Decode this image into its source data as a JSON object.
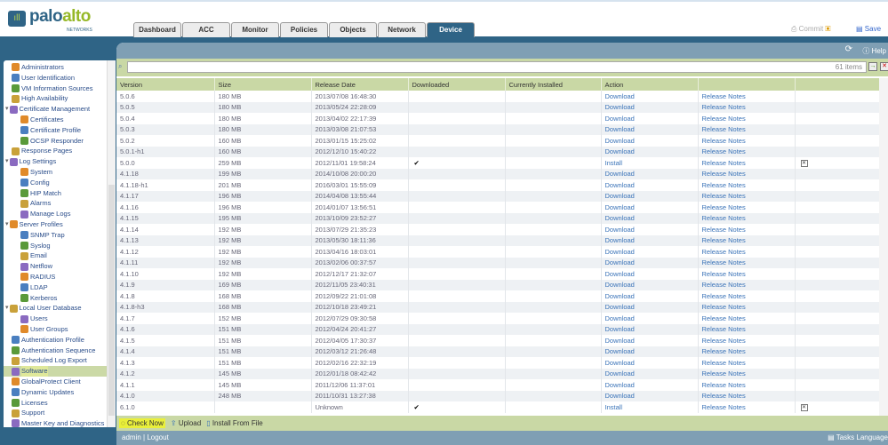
{
  "brand": {
    "name_a": "palo",
    "name_b": "alto",
    "sub": "NETWORKS"
  },
  "tabs": [
    "Dashboard",
    "ACC",
    "Monitor",
    "Policies",
    "Objects",
    "Network",
    "Device"
  ],
  "active_tab": "Device",
  "header": {
    "commit": "Commit",
    "save": "Save",
    "help": "Help"
  },
  "sidebar": {
    "items": [
      {
        "label": "Administrators",
        "level": 0
      },
      {
        "label": "User Identification",
        "level": 0
      },
      {
        "label": "VM Information Sources",
        "level": 0
      },
      {
        "label": "High Availability",
        "level": 0
      },
      {
        "label": "Certificate Management",
        "level": 0,
        "expanded": true
      },
      {
        "label": "Certificates",
        "level": 1
      },
      {
        "label": "Certificate Profile",
        "level": 1
      },
      {
        "label": "OCSP Responder",
        "level": 1
      },
      {
        "label": "Response Pages",
        "level": 0
      },
      {
        "label": "Log Settings",
        "level": 0,
        "expanded": true
      },
      {
        "label": "System",
        "level": 1
      },
      {
        "label": "Config",
        "level": 1
      },
      {
        "label": "HIP Match",
        "level": 1
      },
      {
        "label": "Alarms",
        "level": 1
      },
      {
        "label": "Manage Logs",
        "level": 1
      },
      {
        "label": "Server Profiles",
        "level": 0,
        "expanded": true
      },
      {
        "label": "SNMP Trap",
        "level": 1
      },
      {
        "label": "Syslog",
        "level": 1
      },
      {
        "label": "Email",
        "level": 1
      },
      {
        "label": "Netflow",
        "level": 1
      },
      {
        "label": "RADIUS",
        "level": 1
      },
      {
        "label": "LDAP",
        "level": 1
      },
      {
        "label": "Kerberos",
        "level": 1
      },
      {
        "label": "Local User Database",
        "level": 0,
        "expanded": true
      },
      {
        "label": "Users",
        "level": 1
      },
      {
        "label": "User Groups",
        "level": 1
      },
      {
        "label": "Authentication Profile",
        "level": 0
      },
      {
        "label": "Authentication Sequence",
        "level": 0
      },
      {
        "label": "Scheduled Log Export",
        "level": 0
      },
      {
        "label": "Software",
        "level": 0,
        "selected": true
      },
      {
        "label": "GlobalProtect Client",
        "level": 0
      },
      {
        "label": "Dynamic Updates",
        "level": 0
      },
      {
        "label": "Licenses",
        "level": 0
      },
      {
        "label": "Support",
        "level": 0
      },
      {
        "label": "Master Key and Diagnostics",
        "level": 0
      }
    ]
  },
  "search": {
    "count": "61 items"
  },
  "table": {
    "columns": [
      "Version",
      "Size",
      "Release Date",
      "Downloaded",
      "Currently Installed",
      "Action",
      "",
      ""
    ],
    "rows": [
      [
        "5.0.6",
        "180 MB",
        "2013/07/08 16:48:30",
        "",
        "",
        "Download",
        "Release Notes",
        ""
      ],
      [
        "5.0.5",
        "180 MB",
        "2013/05/24 22:28:09",
        "",
        "",
        "Download",
        "Release Notes",
        ""
      ],
      [
        "5.0.4",
        "180 MB",
        "2013/04/02 22:17:39",
        "",
        "",
        "Download",
        "Release Notes",
        ""
      ],
      [
        "5.0.3",
        "180 MB",
        "2013/03/08 21:07:53",
        "",
        "",
        "Download",
        "Release Notes",
        ""
      ],
      [
        "5.0.2",
        "160 MB",
        "2013/01/15 15:25:02",
        "",
        "",
        "Download",
        "Release Notes",
        ""
      ],
      [
        "5.0.1-h1",
        "160 MB",
        "2012/12/10 15:40:22",
        "",
        "",
        "Download",
        "Release Notes",
        ""
      ],
      [
        "5.0.0",
        "259 MB",
        "2012/11/01 19:58:24",
        "✔",
        "",
        "Install",
        "Release Notes",
        "✕"
      ],
      [
        "4.1.18",
        "199 MB",
        "2014/10/08 20:00:20",
        "",
        "",
        "Download",
        "Release Notes",
        ""
      ],
      [
        "4.1.18-h1",
        "201 MB",
        "2016/03/01 15:55:09",
        "",
        "",
        "Download",
        "Release Notes",
        ""
      ],
      [
        "4.1.17",
        "196 MB",
        "2014/04/08 13:55:44",
        "",
        "",
        "Download",
        "Release Notes",
        ""
      ],
      [
        "4.1.16",
        "196 MB",
        "2014/01/07 13:56:51",
        "",
        "",
        "Download",
        "Release Notes",
        ""
      ],
      [
        "4.1.15",
        "195 MB",
        "2013/10/09 23:52:27",
        "",
        "",
        "Download",
        "Release Notes",
        ""
      ],
      [
        "4.1.14",
        "192 MB",
        "2013/07/29 21:35:23",
        "",
        "",
        "Download",
        "Release Notes",
        ""
      ],
      [
        "4.1.13",
        "192 MB",
        "2013/05/30 18:11:36",
        "",
        "",
        "Download",
        "Release Notes",
        ""
      ],
      [
        "4.1.12",
        "192 MB",
        "2013/04/16 18:03:01",
        "",
        "",
        "Download",
        "Release Notes",
        ""
      ],
      [
        "4.1.11",
        "192 MB",
        "2013/02/06 00:37:57",
        "",
        "",
        "Download",
        "Release Notes",
        ""
      ],
      [
        "4.1.10",
        "192 MB",
        "2012/12/17 21:32:07",
        "",
        "",
        "Download",
        "Release Notes",
        ""
      ],
      [
        "4.1.9",
        "169 MB",
        "2012/11/05 23:40:31",
        "",
        "",
        "Download",
        "Release Notes",
        ""
      ],
      [
        "4.1.8",
        "168 MB",
        "2012/09/22 21:01:08",
        "",
        "",
        "Download",
        "Release Notes",
        ""
      ],
      [
        "4.1.8-h3",
        "168 MB",
        "2012/10/18 23:49:21",
        "",
        "",
        "Download",
        "Release Notes",
        ""
      ],
      [
        "4.1.7",
        "152 MB",
        "2012/07/29 09:30:58",
        "",
        "",
        "Download",
        "Release Notes",
        ""
      ],
      [
        "4.1.6",
        "151 MB",
        "2012/04/24 20:41:27",
        "",
        "",
        "Download",
        "Release Notes",
        ""
      ],
      [
        "4.1.5",
        "151 MB",
        "2012/04/05 17:30:37",
        "",
        "",
        "Download",
        "Release Notes",
        ""
      ],
      [
        "4.1.4",
        "151 MB",
        "2012/03/12 21:26:48",
        "",
        "",
        "Download",
        "Release Notes",
        ""
      ],
      [
        "4.1.3",
        "151 MB",
        "2012/02/16 22:32:19",
        "",
        "",
        "Download",
        "Release Notes",
        ""
      ],
      [
        "4.1.2",
        "145 MB",
        "2012/01/18 08:42:42",
        "",
        "",
        "Download",
        "Release Notes",
        ""
      ],
      [
        "4.1.1",
        "145 MB",
        "2011/12/06 11:37:01",
        "",
        "",
        "Download",
        "Release Notes",
        ""
      ],
      [
        "4.1.0",
        "248 MB",
        "2011/10/31 13:27:38",
        "",
        "",
        "Download",
        "Release Notes",
        ""
      ],
      [
        "6.1.0",
        "",
        "Unknown",
        "✔",
        "",
        "Install",
        "Release Notes",
        "✕"
      ]
    ]
  },
  "footer": {
    "check_now": "Check Now",
    "upload": "Upload",
    "install_from_file": "Install From File"
  },
  "status": {
    "user": "admin",
    "logout": "Logout",
    "tasks": "Tasks",
    "language": "Language"
  }
}
